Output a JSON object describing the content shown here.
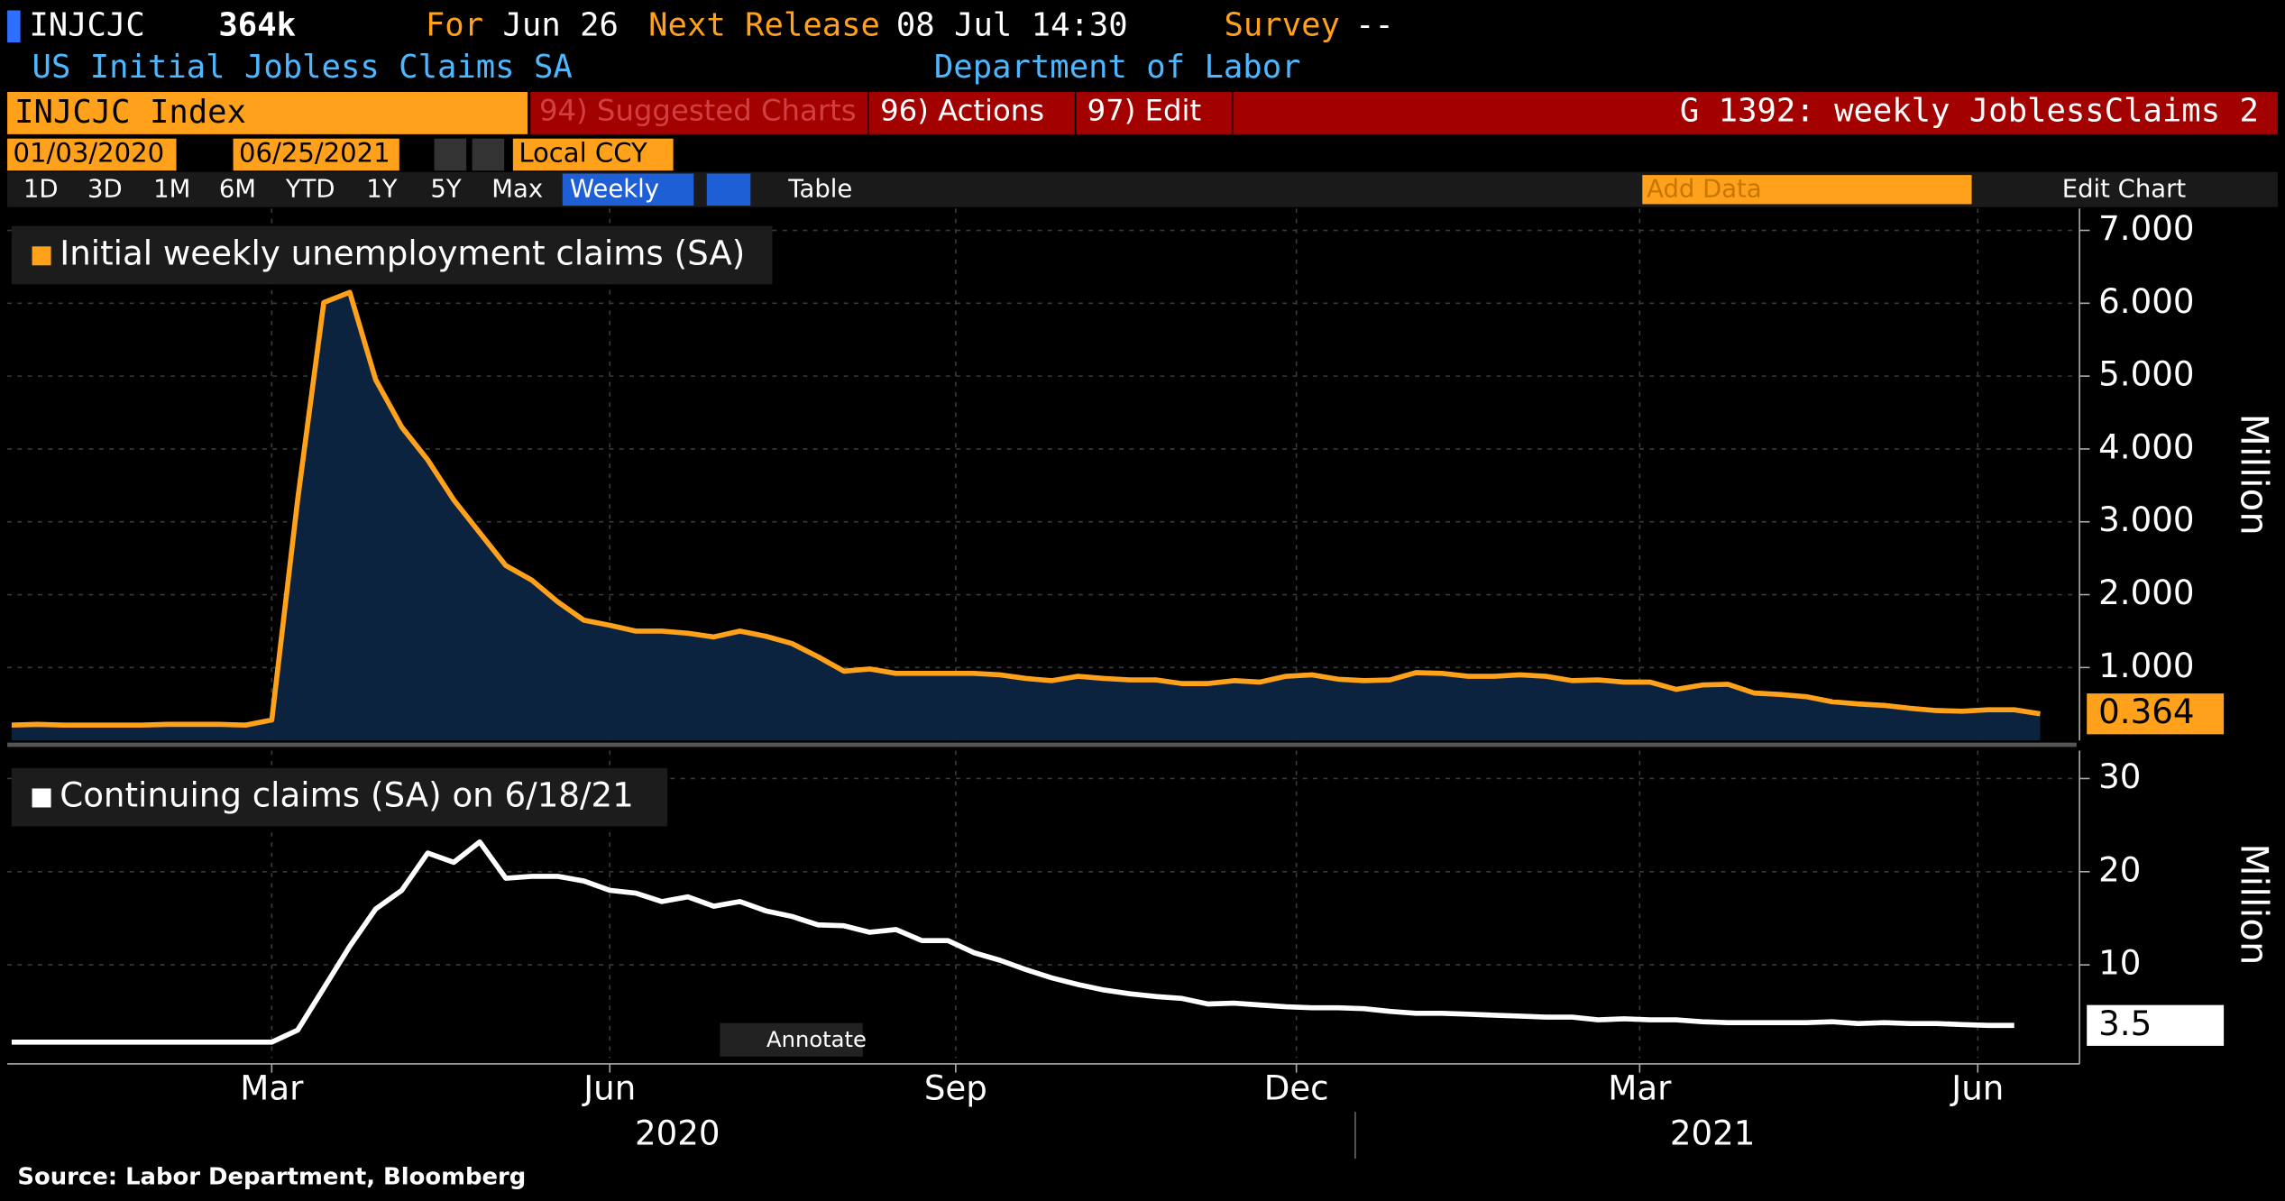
{
  "terminal": {
    "ticker": "INJCJC",
    "last": "364k",
    "for_label": "For",
    "for_date": "Jun 26",
    "next_label": "Next Release",
    "next_date": "08 Jul 14:30",
    "survey_label": "Survey",
    "survey_value": "--",
    "name": "US Initial Jobless Claims SA",
    "source_org": "Department of Labor",
    "security": "INJCJC Index",
    "menu": [
      "94) Suggested Charts",
      "96) Actions",
      "97) Edit"
    ],
    "chart_id": "G 1392: weekly JoblessClaims 2",
    "start_date": "01/03/2020",
    "end_date": "06/25/2021",
    "currency": "Local CCY",
    "periods": [
      "1D",
      "3D",
      "1M",
      "6M",
      "YTD",
      "1Y",
      "5Y",
      "Max"
    ],
    "frequency": "Weekly",
    "table": "Table",
    "add_data": "Add Data",
    "edit_chart": "Edit Chart",
    "annotate": "Annotate",
    "source": "Source: Labor Department, Bloomberg"
  },
  "chart_data": [
    {
      "type": "area",
      "ylabel": "Million",
      "ylim": [
        0,
        7.3
      ],
      "xlim": [
        0,
        78
      ],
      "grid": true,
      "yticks": [
        {
          "value": 1,
          "label": "1.000"
        },
        {
          "value": 2,
          "label": "2.000"
        },
        {
          "value": 3,
          "label": "3.000"
        },
        {
          "value": 4,
          "label": "4.000"
        },
        {
          "value": 5,
          "label": "5.000"
        },
        {
          "value": 6,
          "label": "6.000"
        },
        {
          "value": 7,
          "label": "7.000"
        }
      ],
      "last_value_label": "0.364",
      "series": [
        {
          "name": "Initial weekly unemployment claims (SA)",
          "color": "#ffa11a",
          "fill": "#0c2340",
          "values": [
            0.21,
            0.22,
            0.21,
            0.21,
            0.21,
            0.21,
            0.22,
            0.22,
            0.22,
            0.21,
            0.28,
            3.31,
            6.01,
            6.15,
            4.95,
            4.3,
            3.85,
            3.3,
            2.85,
            2.4,
            2.2,
            1.9,
            1.65,
            1.58,
            1.5,
            1.5,
            1.47,
            1.42,
            1.5,
            1.43,
            1.33,
            1.15,
            0.95,
            0.98,
            0.92,
            0.92,
            0.92,
            0.92,
            0.9,
            0.85,
            0.82,
            0.88,
            0.85,
            0.83,
            0.83,
            0.78,
            0.78,
            0.82,
            0.8,
            0.88,
            0.9,
            0.84,
            0.82,
            0.83,
            0.93,
            0.92,
            0.88,
            0.88,
            0.9,
            0.88,
            0.82,
            0.83,
            0.8,
            0.8,
            0.7,
            0.76,
            0.77,
            0.65,
            0.63,
            0.6,
            0.53,
            0.5,
            0.48,
            0.44,
            0.41,
            0.4,
            0.42,
            0.42,
            0.364
          ]
        }
      ]
    },
    {
      "type": "line",
      "ylabel": "Million",
      "ylim": [
        0,
        33
      ],
      "xlim": [
        0,
        78
      ],
      "grid": true,
      "yticks": [
        10,
        20,
        30
      ],
      "last_value_label": "3.5",
      "xticks": [
        {
          "value": 10,
          "label": "Mar"
        },
        {
          "value": 23,
          "label": "Jun"
        },
        {
          "value": 36.3,
          "label": "Sep"
        },
        {
          "value": 49.4,
          "label": "Dec"
        },
        {
          "value": 62.6,
          "label": "Mar"
        },
        {
          "value": 75.6,
          "label": "Jun"
        }
      ],
      "xyears": [
        {
          "value": 25.6,
          "label": "2020"
        },
        {
          "value": 65.4,
          "label": "2021"
        }
      ],
      "series": [
        {
          "name": "Continuing claims (SA) on 6/18/21",
          "color": "#ffffff",
          "values": [
            1.7,
            1.7,
            1.7,
            1.7,
            1.7,
            1.7,
            1.7,
            1.7,
            1.7,
            1.7,
            1.7,
            3.0,
            7.5,
            12,
            16,
            18,
            22,
            21,
            23.2,
            19.3,
            19.5,
            19.5,
            19,
            18,
            17.7,
            16.8,
            17.3,
            16.3,
            16.8,
            15.8,
            15.2,
            14.3,
            14.2,
            13.5,
            13.8,
            12.6,
            12.6,
            11.3,
            10.5,
            9.5,
            8.6,
            7.9,
            7.3,
            6.9,
            6.6,
            6.4,
            5.8,
            5.9,
            5.7,
            5.5,
            5.4,
            5.4,
            5.3,
            5.0,
            4.8,
            4.8,
            4.7,
            4.6,
            4.5,
            4.4,
            4.4,
            4.1,
            4.2,
            4.1,
            4.1,
            3.9,
            3.8,
            3.8,
            3.8,
            3.8,
            3.9,
            3.7,
            3.8,
            3.7,
            3.7,
            3.6,
            3.5,
            3.5
          ]
        }
      ]
    }
  ]
}
